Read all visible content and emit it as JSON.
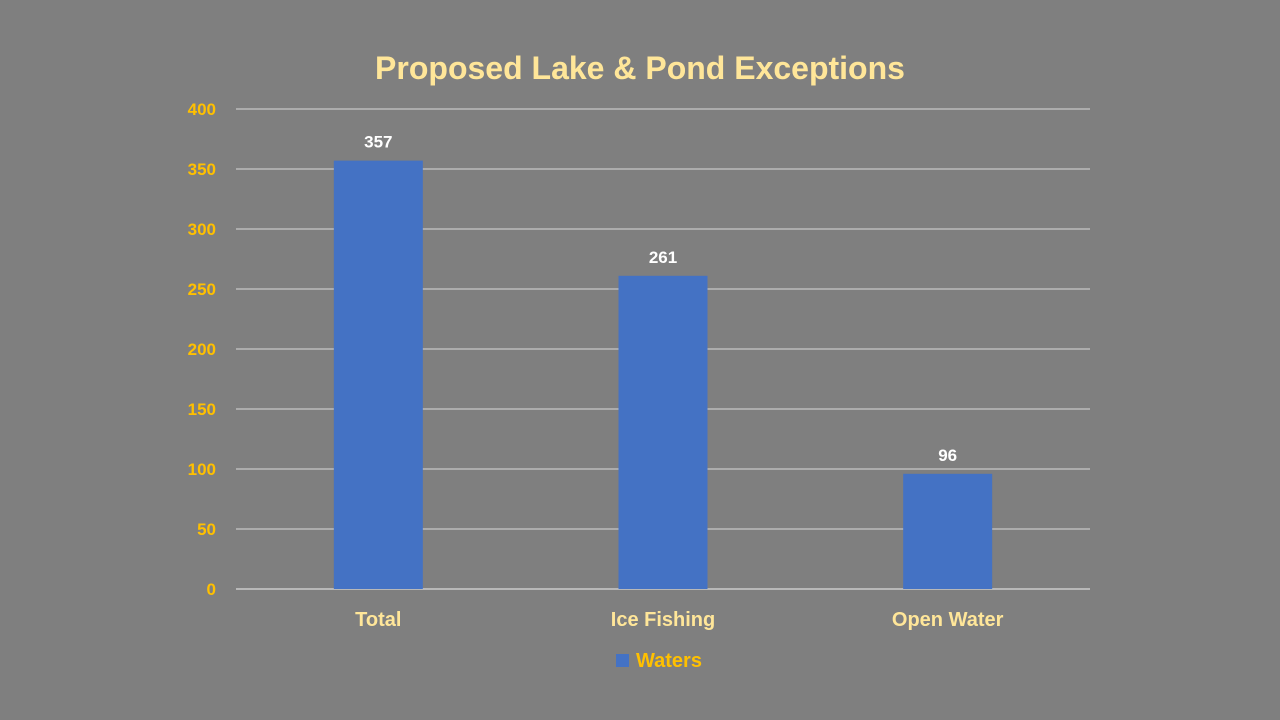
{
  "chart_data": {
    "type": "bar",
    "title": "Proposed Lake & Pond Exceptions",
    "categories": [
      "Total",
      "Ice Fishing",
      "Open Water"
    ],
    "series": [
      {
        "name": "Waters",
        "values": [
          357,
          261,
          96
        ],
        "color": "#4472c4"
      }
    ],
    "yticks": [
      "0",
      "50",
      "100",
      "150",
      "200",
      "250",
      "300",
      "350",
      "400"
    ],
    "ylim": [
      0,
      400
    ],
    "grid": true,
    "data_labels": true,
    "legend_position": "bottom",
    "xlabel": "",
    "ylabel": ""
  },
  "colors": {
    "background": "#7f7f7f",
    "title": "#ffe699",
    "y_tick": "#ffc000",
    "x_tick": "#ffe699",
    "data_label": "#ffffff",
    "legend_text": "#ffc000",
    "gridline": "#d9d9d9"
  }
}
